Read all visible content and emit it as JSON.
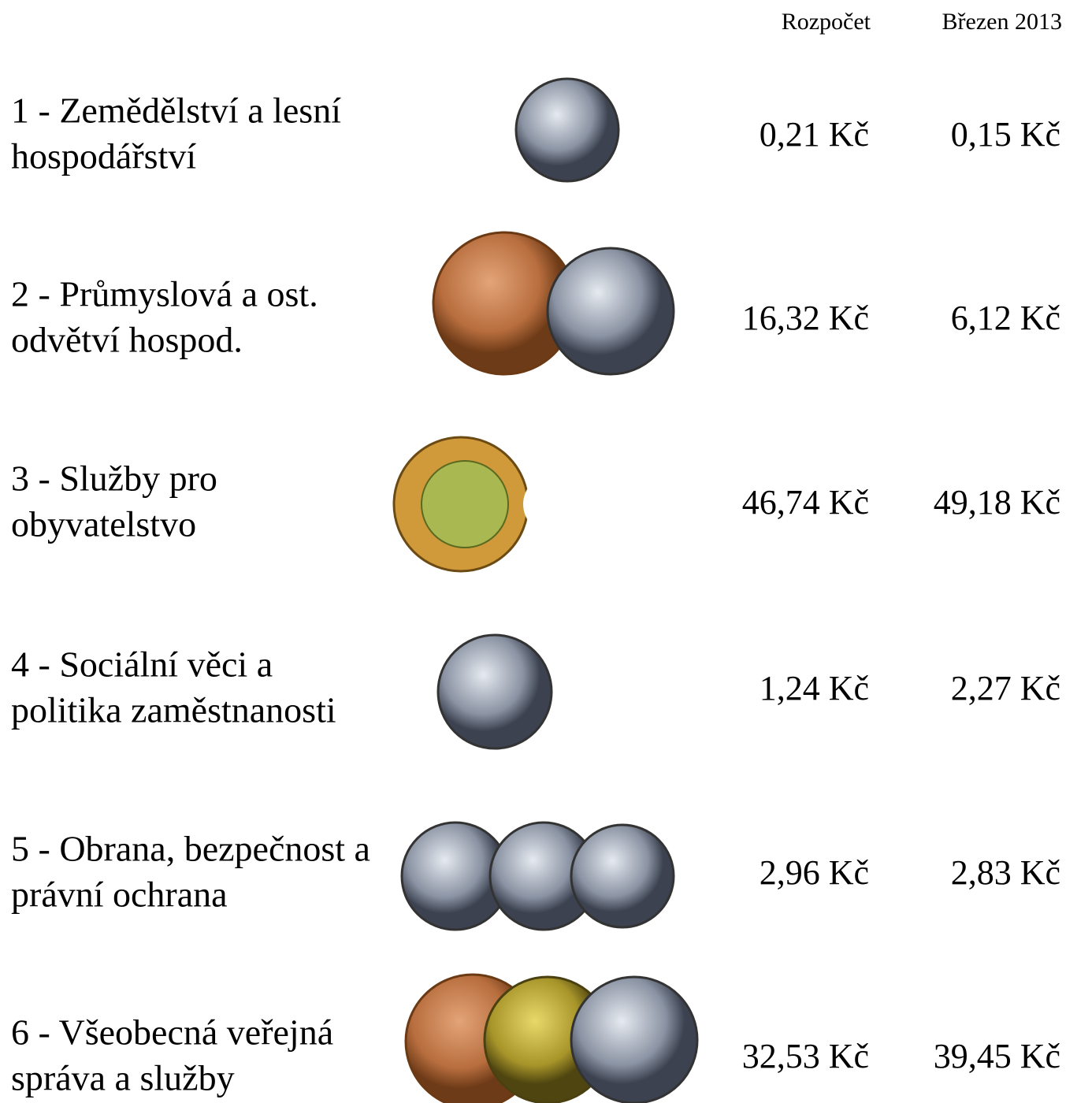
{
  "header": {
    "columns": [
      "Rozpočet",
      "Březen 2013"
    ]
  },
  "rows": [
    {
      "label": [
        "1 - Zemědělství a lesní",
        "hospodářství"
      ],
      "values": [
        "0,21 Kč",
        "0,15 Kč"
      ]
    },
    {
      "label": [
        "2 - Průmyslová a ost.",
        "odvětví hospod."
      ],
      "values": [
        "16,32 Kč",
        "6,12 Kč"
      ]
    },
    {
      "label": [
        "3 - Služby pro",
        "obyvatelstvo"
      ],
      "values": [
        "46,74 Kč",
        "49,18 Kč"
      ]
    },
    {
      "label": [
        "4 - Sociální věci a",
        "politika zaměstnanosti"
      ],
      "values": [
        "1,24 Kč",
        "2,27 Kč"
      ]
    },
    {
      "label": [
        "5 - Obrana, bezpečnost a",
        "právní ochrana"
      ],
      "values": [
        "2,96 Kč",
        "2,83 Kč"
      ]
    },
    {
      "label": [
        "6 - Všeobecná veřejná",
        "správa a služby"
      ],
      "values": [
        "32,53 Kč",
        "39,45 Kč"
      ]
    }
  ]
}
